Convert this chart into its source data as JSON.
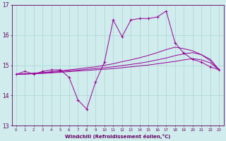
{
  "xlabel": "Windchill (Refroidissement éolien,°C)",
  "x_values": [
    0,
    1,
    2,
    3,
    4,
    5,
    6,
    7,
    8,
    9,
    10,
    11,
    12,
    13,
    14,
    15,
    16,
    17,
    18,
    19,
    20,
    21,
    22,
    23
  ],
  "line1_y": [
    14.7,
    14.8,
    14.7,
    14.8,
    14.85,
    14.85,
    14.6,
    13.85,
    13.55,
    14.45,
    15.1,
    16.5,
    15.95,
    16.5,
    16.55,
    16.55,
    16.6,
    16.8,
    15.75,
    15.4,
    15.2,
    15.1,
    14.95,
    14.85
  ],
  "line2_y": [
    14.7,
    14.72,
    14.74,
    14.76,
    14.79,
    14.82,
    14.85,
    14.88,
    14.92,
    14.95,
    15.0,
    15.05,
    15.12,
    15.18,
    15.25,
    15.33,
    15.42,
    15.52,
    15.6,
    15.55,
    15.48,
    15.35,
    15.15,
    14.85
  ],
  "line3_y": [
    14.7,
    14.71,
    14.73,
    14.75,
    14.77,
    14.79,
    14.82,
    14.84,
    14.87,
    14.89,
    14.92,
    14.95,
    14.99,
    15.03,
    15.07,
    15.12,
    15.18,
    15.24,
    15.32,
    15.38,
    15.42,
    15.35,
    15.2,
    14.85
  ],
  "line4_y": [
    14.7,
    14.71,
    14.72,
    14.73,
    14.75,
    14.77,
    14.79,
    14.81,
    14.83,
    14.85,
    14.87,
    14.89,
    14.92,
    14.95,
    14.98,
    15.01,
    15.05,
    15.09,
    15.13,
    15.18,
    15.22,
    15.18,
    15.08,
    14.85
  ],
  "line_color": "#990099",
  "bg_color": "#d0ecec",
  "grid_color": "#aad4d4",
  "axis_color": "#660066",
  "text_color": "#660066",
  "ylim": [
    13.0,
    17.0
  ],
  "xlim": [
    -0.5,
    23.5
  ],
  "yticks": [
    13,
    14,
    15,
    16,
    17
  ]
}
